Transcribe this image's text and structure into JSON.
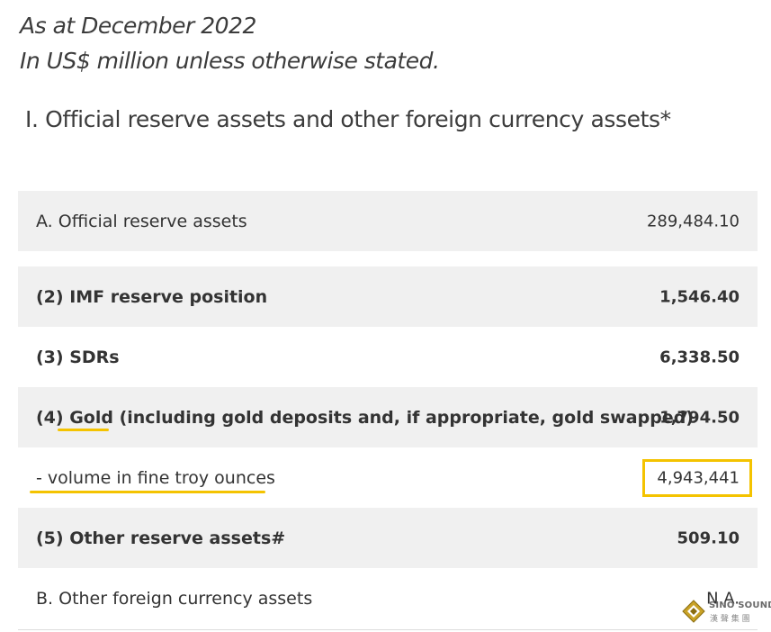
{
  "header": {
    "line1": "As at December 2022",
    "line2": "In US$ million unless otherwise stated."
  },
  "section_title": "I. Official reserve assets and other foreign currency assets*",
  "rows": [
    {
      "label": "A. Official reserve assets",
      "value": "289,484.10"
    },
    {
      "label": "(2) IMF reserve position",
      "value": "1,546.40"
    },
    {
      "label": "(3) SDRs",
      "value": "6,338.50"
    },
    {
      "label_pre": "(4) ",
      "label_highlight": "Gold",
      "label_post": " (including gold deposits and, if appropriate, gold swapped)",
      "value": "1,794.50"
    },
    {
      "label": "- volume in fine troy ounces",
      "value": "4,943,441"
    },
    {
      "label": "(5) Other reserve assets#",
      "value": "509.10"
    },
    {
      "label": "B. Other foreign currency assets",
      "value": "N.A."
    }
  ],
  "logo": {
    "name": "SINO SOUND",
    "subtitle": "漢 聲 集 團"
  },
  "colors": {
    "highlight": "#f4c300",
    "row_gray": "#f0f0f0"
  }
}
